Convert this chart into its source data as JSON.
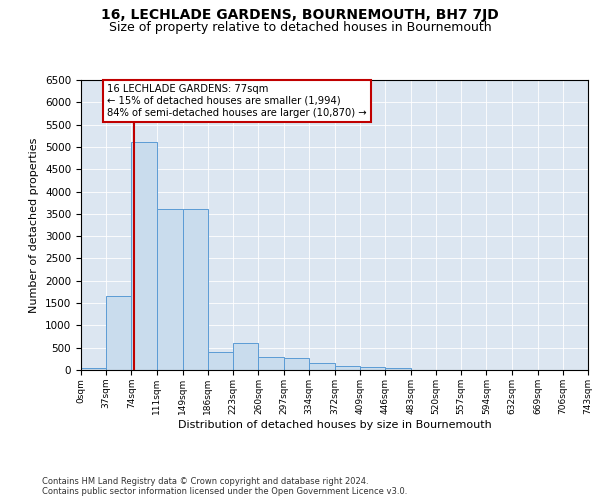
{
  "title": "16, LECHLADE GARDENS, BOURNEMOUTH, BH7 7JD",
  "subtitle": "Size of property relative to detached houses in Bournemouth",
  "xlabel": "Distribution of detached houses by size in Bournemouth",
  "ylabel": "Number of detached properties",
  "bin_edges": [
    0,
    37,
    74,
    111,
    149,
    186,
    223,
    260,
    297,
    334,
    372,
    409,
    446,
    483,
    520,
    557,
    594,
    632,
    669,
    706,
    743
  ],
  "bar_heights": [
    50,
    1650,
    5100,
    3600,
    3600,
    400,
    600,
    300,
    280,
    150,
    100,
    75,
    50,
    10,
    5,
    0,
    0,
    0,
    0,
    0
  ],
  "bar_color": "#c9dced",
  "bar_edge_color": "#5b9bd5",
  "property_size": 77,
  "property_line_color": "#c00000",
  "annotation_line1": "16 LECHLADE GARDENS: 77sqm",
  "annotation_line2": "← 15% of detached houses are smaller (1,994)",
  "annotation_line3": "84% of semi-detached houses are larger (10,870) →",
  "annotation_box_edgecolor": "#c00000",
  "ylim_max": 6500,
  "yticks": [
    0,
    500,
    1000,
    1500,
    2000,
    2500,
    3000,
    3500,
    4000,
    4500,
    5000,
    5500,
    6000,
    6500
  ],
  "plot_bg_color": "#dce6f1",
  "footer_line1": "Contains HM Land Registry data © Crown copyright and database right 2024.",
  "footer_line2": "Contains public sector information licensed under the Open Government Licence v3.0.",
  "title_fontsize": 10,
  "subtitle_fontsize": 9
}
